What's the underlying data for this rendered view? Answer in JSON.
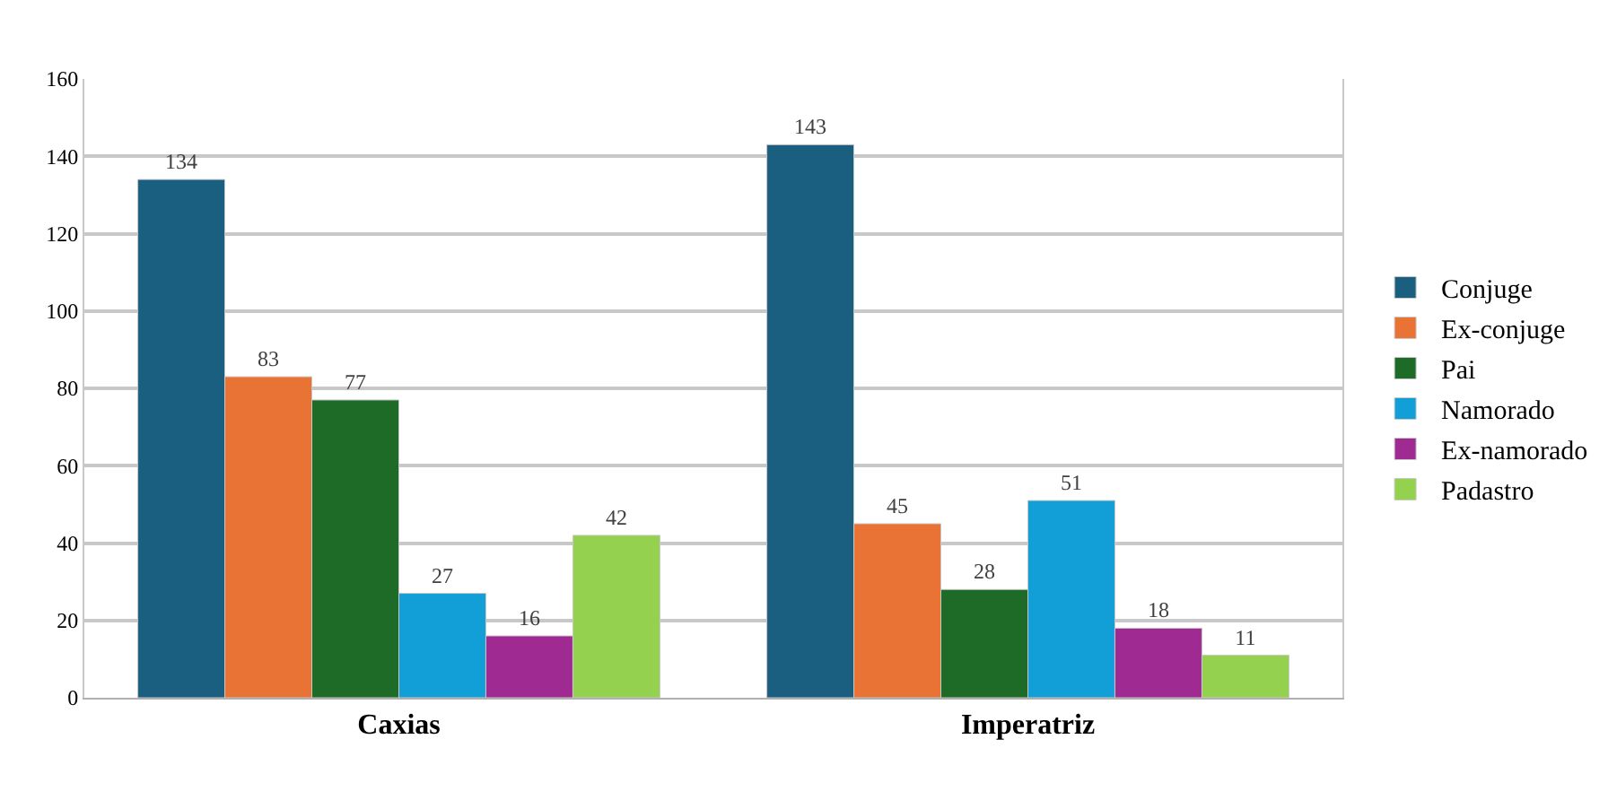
{
  "chart_data": {
    "type": "bar",
    "categories": [
      "Caxias",
      "Imperatriz"
    ],
    "series": [
      {
        "name": "Conjuge",
        "color": "#1a5e80",
        "values": [
          134,
          143
        ]
      },
      {
        "name": "Ex-conjuge",
        "color": "#e87334",
        "values": [
          83,
          45
        ]
      },
      {
        "name": "Pai",
        "color": "#1e6b27",
        "values": [
          77,
          28
        ]
      },
      {
        "name": "Namorado",
        "color": "#129fd8",
        "values": [
          27,
          51
        ]
      },
      {
        "name": "Ex-namorado",
        "color": "#9f2a92",
        "values": [
          16,
          18
        ]
      },
      {
        "name": "Padastro",
        "color": "#93d14f",
        "values": [
          42,
          11
        ]
      }
    ],
    "ylim": [
      0,
      160
    ],
    "yticks": [
      0,
      20,
      40,
      60,
      80,
      100,
      120,
      140,
      160
    ],
    "grid": "y",
    "legend": "right",
    "data_labels": true
  }
}
